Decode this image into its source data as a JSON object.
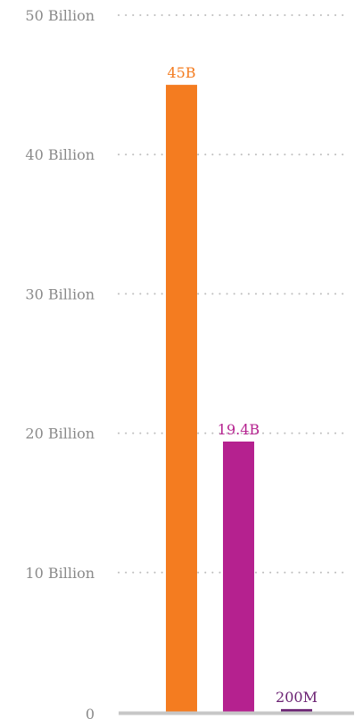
{
  "chart_data": {
    "type": "bar",
    "title": "",
    "xlabel": "",
    "ylabel": "",
    "ylim": [
      0,
      50000000000
    ],
    "grid": "dotted horizontal",
    "y_ticks": [
      {
        "value": 0,
        "label": "0"
      },
      {
        "value": 10000000000,
        "label": "10 Billion"
      },
      {
        "value": 20000000000,
        "label": "20 Billion"
      },
      {
        "value": 30000000000,
        "label": "30 Billion"
      },
      {
        "value": 40000000000,
        "label": "40 Billion"
      },
      {
        "value": 50000000000,
        "label": "50 Billion"
      }
    ],
    "bars": [
      {
        "value": 45000000000,
        "label": "45B",
        "color": "#f47c20"
      },
      {
        "value": 19400000000,
        "label": "19.4B",
        "color": "#b5218f"
      },
      {
        "value": 200000000,
        "label": "200M",
        "color": "#6b2273"
      }
    ]
  },
  "colors": {
    "grid": "#bdbdbd",
    "axis": "#c7c7c7",
    "tick_text": "#8a8a8a"
  }
}
